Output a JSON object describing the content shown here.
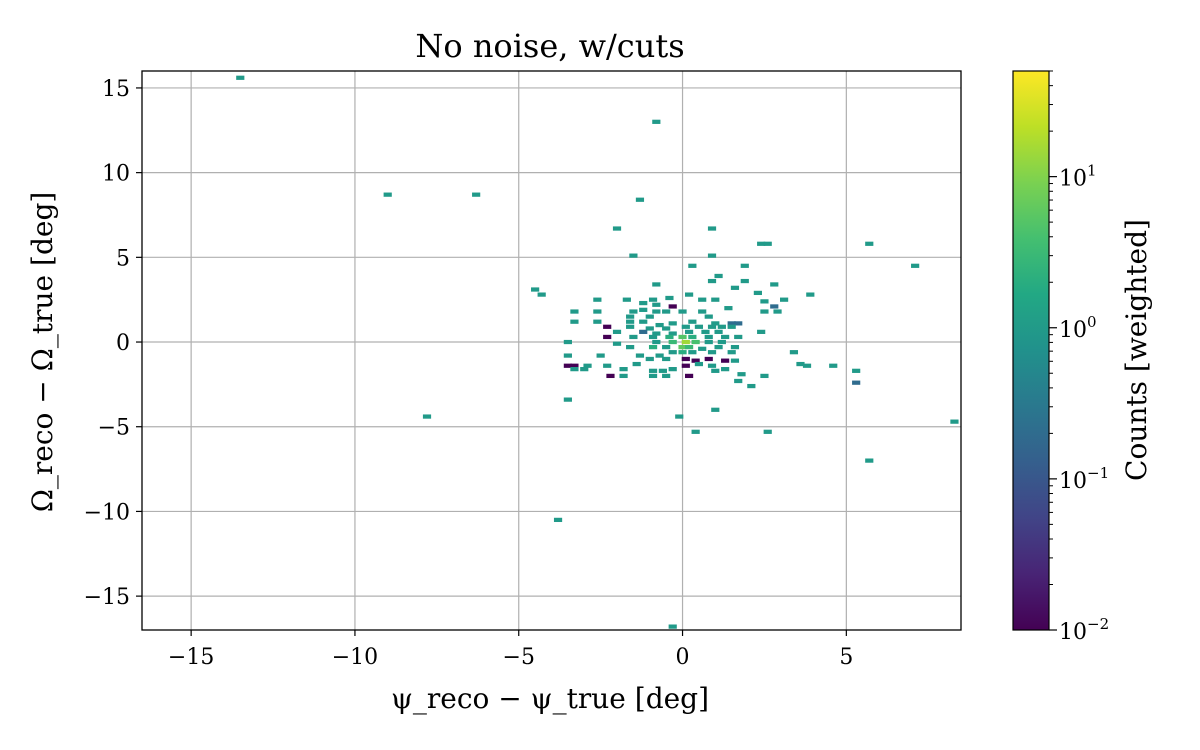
{
  "chart_data": {
    "type": "heatmap",
    "title": "No noise, w/cuts",
    "xlabel": "ψ_reco − ψ_true [deg]",
    "ylabel": "Ω_reco − Ω_true [deg]",
    "xlim": [
      -16.5,
      8.5
    ],
    "ylim": [
      -17,
      16
    ],
    "xticks": [
      -15,
      -10,
      -5,
      0,
      5
    ],
    "yticks": [
      -15,
      -10,
      -5,
      0,
      5,
      10,
      15
    ],
    "grid": true,
    "bin_width": 0.25,
    "bin_height": 0.25,
    "colorbar": {
      "label": "Counts [weighted]",
      "scale": "log",
      "range": [
        0.01,
        50
      ],
      "ticks": [
        {
          "value": 0.01,
          "mantissa": "10",
          "exp": "−2"
        },
        {
          "value": 0.1,
          "mantissa": "10",
          "exp": "−1"
        },
        {
          "value": 1,
          "mantissa": "10",
          "exp": "0"
        },
        {
          "value": 10,
          "mantissa": "10",
          "exp": "1"
        }
      ],
      "colormap": "viridis"
    },
    "bins": [
      [
        -13.5,
        15.6,
        1
      ],
      [
        -0.8,
        13.0,
        1
      ],
      [
        -9.0,
        8.7,
        1
      ],
      [
        -6.3,
        8.7,
        1
      ],
      [
        -1.3,
        8.4,
        1
      ],
      [
        -2.0,
        6.7,
        1
      ],
      [
        0.9,
        6.7,
        1
      ],
      [
        -1.5,
        5.1,
        1
      ],
      [
        2.4,
        5.8,
        1
      ],
      [
        2.6,
        5.8,
        1
      ],
      [
        5.7,
        5.8,
        1
      ],
      [
        0.9,
        5.1,
        1
      ],
      [
        0.3,
        4.5,
        1
      ],
      [
        1.9,
        4.5,
        1
      ],
      [
        7.1,
        4.5,
        1
      ],
      [
        1.1,
        3.9,
        1
      ],
      [
        0.9,
        3.6,
        1
      ],
      [
        1.9,
        3.6,
        1
      ],
      [
        -0.8,
        3.4,
        1
      ],
      [
        1.6,
        3.2,
        1
      ],
      [
        2.8,
        3.4,
        1
      ],
      [
        -4.5,
        3.1,
        1
      ],
      [
        -4.3,
        2.8,
        1
      ],
      [
        0.2,
        2.8,
        1
      ],
      [
        2.3,
        2.9,
        1
      ],
      [
        3.9,
        2.8,
        1
      ],
      [
        -1.7,
        2.5,
        1
      ],
      [
        -0.9,
        2.5,
        1
      ],
      [
        -0.4,
        2.6,
        1
      ],
      [
        0.6,
        2.5,
        1
      ],
      [
        1.0,
        2.5,
        1
      ],
      [
        2.5,
        2.4,
        1
      ],
      [
        3.1,
        2.5,
        1
      ],
      [
        -2.6,
        2.5,
        1
      ],
      [
        -1.2,
        2.3,
        1
      ],
      [
        -0.8,
        2.2,
        1
      ],
      [
        -0.3,
        2.1,
        0.01
      ],
      [
        1.4,
        2.0,
        1
      ],
      [
        2.8,
        2.1,
        0.2
      ],
      [
        -3.3,
        1.8,
        1
      ],
      [
        -2.6,
        1.8,
        1
      ],
      [
        -1.5,
        1.8,
        1
      ],
      [
        -1.2,
        1.9,
        1
      ],
      [
        -0.8,
        1.8,
        1
      ],
      [
        -0.5,
        1.8,
        1
      ],
      [
        0.0,
        1.8,
        1
      ],
      [
        0.6,
        1.8,
        1
      ],
      [
        2.5,
        1.8,
        1
      ],
      [
        2.9,
        1.8,
        1
      ],
      [
        -1.6,
        1.5,
        1
      ],
      [
        -1.0,
        1.5,
        1
      ],
      [
        0.8,
        1.5,
        1
      ],
      [
        -3.3,
        1.2,
        1
      ],
      [
        -2.6,
        1.2,
        1
      ],
      [
        -1.6,
        1.2,
        1
      ],
      [
        -1.2,
        1.2,
        1
      ],
      [
        -0.7,
        1.0,
        1
      ],
      [
        -0.3,
        1.1,
        1
      ],
      [
        0.3,
        1.2,
        1
      ],
      [
        1.0,
        1.1,
        1
      ],
      [
        1.5,
        1.1,
        0.2
      ],
      [
        1.7,
        1.1,
        0.2
      ],
      [
        -2.3,
        0.9,
        0.01
      ],
      [
        -1.6,
        0.9,
        1
      ],
      [
        -1.0,
        0.8,
        1
      ],
      [
        -0.5,
        0.8,
        1
      ],
      [
        0.1,
        0.9,
        1
      ],
      [
        0.5,
        0.9,
        1
      ],
      [
        0.9,
        0.9,
        1
      ],
      [
        1.2,
        0.9,
        1
      ],
      [
        1.5,
        0.9,
        1
      ],
      [
        -2.0,
        0.6,
        1
      ],
      [
        -1.2,
        0.6,
        0.2
      ],
      [
        -0.8,
        0.5,
        1
      ],
      [
        -0.3,
        0.5,
        1
      ],
      [
        0.2,
        0.6,
        1
      ],
      [
        0.7,
        0.6,
        1
      ],
      [
        1.1,
        0.6,
        1
      ],
      [
        2.4,
        0.6,
        1
      ],
      [
        -2.3,
        0.3,
        0.01
      ],
      [
        -1.5,
        0.3,
        1
      ],
      [
        -0.9,
        0.3,
        1
      ],
      [
        -0.4,
        0.3,
        2
      ],
      [
        0.0,
        0.3,
        5
      ],
      [
        0.3,
        0.3,
        2
      ],
      [
        0.8,
        0.3,
        1
      ],
      [
        1.3,
        0.3,
        1
      ],
      [
        1.7,
        0.3,
        1
      ],
      [
        -3.5,
        0.0,
        1
      ],
      [
        -2.0,
        -0.1,
        1
      ],
      [
        -0.8,
        0.0,
        1
      ],
      [
        -0.3,
        0.0,
        3
      ],
      [
        0.1,
        0.0,
        15
      ],
      [
        0.4,
        0.0,
        4
      ],
      [
        0.8,
        0.0,
        1
      ],
      [
        1.2,
        0.0,
        1
      ],
      [
        -1.6,
        -0.3,
        1
      ],
      [
        -0.9,
        -0.3,
        2
      ],
      [
        -0.5,
        -0.3,
        1
      ],
      [
        0.0,
        -0.3,
        6
      ],
      [
        0.2,
        -0.3,
        3
      ],
      [
        0.6,
        -0.4,
        1
      ],
      [
        1.1,
        -0.3,
        1
      ],
      [
        1.6,
        -0.3,
        1
      ],
      [
        -3.5,
        -0.8,
        1
      ],
      [
        -2.5,
        -0.8,
        1
      ],
      [
        -1.3,
        -0.8,
        1
      ],
      [
        -0.7,
        -0.8,
        1
      ],
      [
        -0.3,
        -0.6,
        1
      ],
      [
        0.0,
        -0.6,
        2
      ],
      [
        0.3,
        -0.6,
        1
      ],
      [
        0.9,
        -0.6,
        1
      ],
      [
        1.5,
        -0.6,
        1
      ],
      [
        3.4,
        -0.6,
        1
      ],
      [
        -1.0,
        -1.0,
        1
      ],
      [
        -0.5,
        -1.0,
        1
      ],
      [
        0.1,
        -1.0,
        0.01
      ],
      [
        0.4,
        -1.1,
        0.01
      ],
      [
        0.8,
        -1.0,
        0.01
      ],
      [
        1.3,
        -1.1,
        0.01
      ],
      [
        1.6,
        -1.1,
        1
      ],
      [
        -3.5,
        -1.4,
        0.01
      ],
      [
        -3.3,
        -1.4,
        0.01
      ],
      [
        -2.9,
        -1.4,
        1
      ],
      [
        -3.0,
        -1.6,
        1
      ],
      [
        -2.3,
        -1.4,
        1
      ],
      [
        -1.4,
        -1.3,
        1
      ],
      [
        0.1,
        -1.4,
        0.01
      ],
      [
        0.5,
        -1.3,
        1
      ],
      [
        0.9,
        -1.4,
        1
      ],
      [
        3.6,
        -1.3,
        1
      ],
      [
        3.8,
        -1.4,
        1
      ],
      [
        4.6,
        -1.4,
        1
      ],
      [
        5.3,
        -1.7,
        1
      ],
      [
        -3.3,
        -1.6,
        1
      ],
      [
        -1.8,
        -1.6,
        1
      ],
      [
        -0.9,
        -1.7,
        1
      ],
      [
        -0.6,
        -1.7,
        1
      ],
      [
        -0.3,
        -1.6,
        1
      ],
      [
        1.3,
        -1.6,
        1
      ],
      [
        1.8,
        -1.9,
        1
      ],
      [
        2.5,
        -2.0,
        1
      ],
      [
        -2.2,
        -2.0,
        0.01
      ],
      [
        -1.8,
        -2.0,
        1
      ],
      [
        -0.9,
        -2.0,
        1
      ],
      [
        -0.5,
        -2.0,
        1
      ],
      [
        0.2,
        -2.0,
        0.01
      ],
      [
        1.0,
        -1.7,
        1
      ],
      [
        1.7,
        -2.3,
        1
      ],
      [
        2.1,
        -2.6,
        1
      ],
      [
        5.3,
        -2.4,
        0.2
      ],
      [
        -3.5,
        -3.4,
        1
      ],
      [
        1.0,
        -4.0,
        1
      ],
      [
        -7.8,
        -4.4,
        1
      ],
      [
        -0.1,
        -4.4,
        1
      ],
      [
        8.3,
        -4.7,
        1
      ],
      [
        0.4,
        -5.3,
        1
      ],
      [
        2.6,
        -5.3,
        1
      ],
      [
        5.7,
        -7.0,
        1
      ],
      [
        -3.8,
        -10.5,
        1
      ],
      [
        -0.3,
        -16.8,
        1
      ]
    ]
  }
}
